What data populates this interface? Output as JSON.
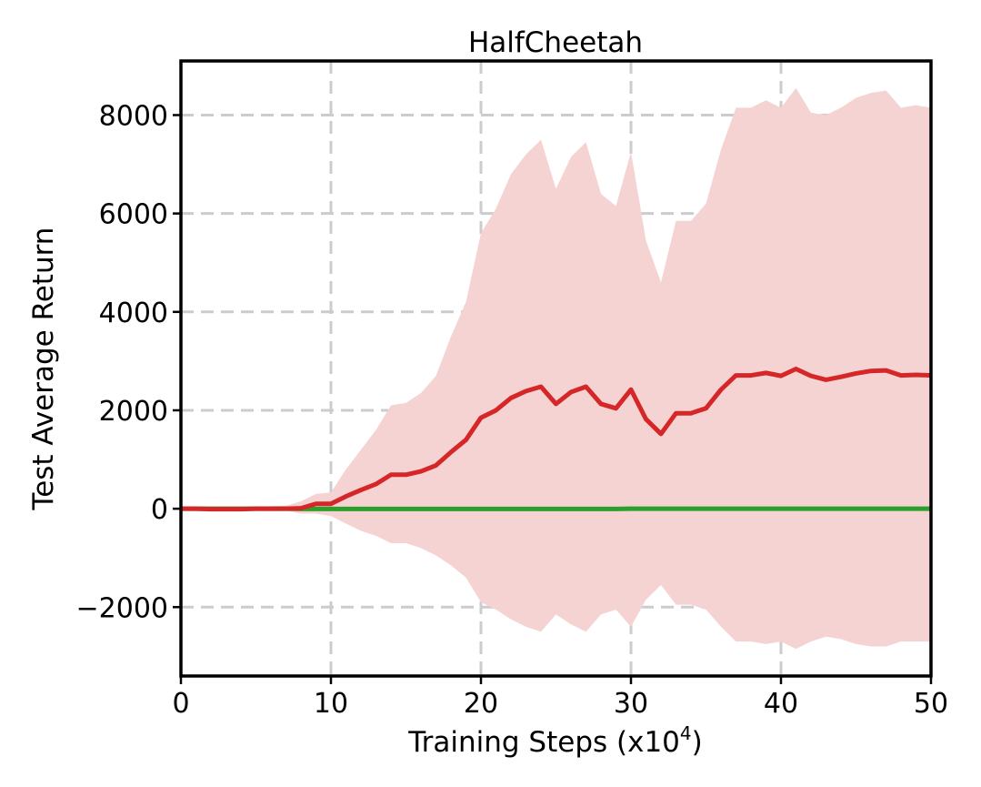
{
  "chart_data": {
    "type": "line",
    "title": "HalfCheetah",
    "xlabel_main": "Training Steps (x10",
    "xlabel_exp": "4",
    "xlabel_close": ")",
    "ylabel": "Test Average Return",
    "xlim": [
      0,
      50
    ],
    "ylim": [
      -3400,
      9100
    ],
    "xticks": [
      0,
      10,
      20,
      30,
      40,
      50
    ],
    "yticks": [
      -2000,
      0,
      2000,
      4000,
      6000,
      8000
    ],
    "ytick_labels": [
      "−2000",
      "0",
      "2000",
      "4000",
      "6000",
      "8000"
    ],
    "grid": true,
    "x": [
      0,
      1,
      2,
      3,
      4,
      5,
      6,
      7,
      8,
      9,
      10,
      11,
      12,
      13,
      14,
      15,
      16,
      17,
      18,
      19,
      20,
      21,
      22,
      23,
      24,
      25,
      26,
      27,
      28,
      29,
      30,
      31,
      32,
      33,
      34,
      35,
      36,
      37,
      38,
      39,
      40,
      41,
      42,
      43,
      44,
      45,
      46,
      47,
      48,
      49,
      50
    ],
    "series": [
      {
        "color": "#d62728",
        "band_color": "#f5d3d3",
        "values": [
          0,
          0,
          -10,
          -10,
          -10,
          0,
          0,
          0,
          10,
          100,
          100,
          250,
          380,
          500,
          690,
          690,
          760,
          880,
          1150,
          1400,
          1850,
          2000,
          2250,
          2390,
          2480,
          2130,
          2370,
          2480,
          2130,
          2040,
          2420,
          1820,
          1520,
          1940,
          1940,
          2040,
          2420,
          2710,
          2710,
          2760,
          2700,
          2840,
          2700,
          2620,
          2680,
          2750,
          2800,
          2810,
          2710,
          2720,
          2710
        ],
        "upper": [
          20,
          20,
          10,
          10,
          10,
          30,
          50,
          60,
          150,
          300,
          330,
          800,
          1200,
          1600,
          2100,
          2150,
          2350,
          2700,
          3500,
          4200,
          5600,
          6100,
          6800,
          7200,
          7500,
          6500,
          7150,
          7450,
          6400,
          6150,
          7250,
          5450,
          4600,
          5850,
          5850,
          6200,
          7300,
          8150,
          8150,
          8300,
          8150,
          8550,
          8050,
          8000,
          8150,
          8350,
          8450,
          8500,
          8150,
          8200,
          8150
        ],
        "lower": [
          -20,
          -20,
          -30,
          -30,
          -30,
          -30,
          -40,
          -40,
          -100,
          -100,
          -150,
          -300,
          -450,
          -550,
          -700,
          -700,
          -800,
          -950,
          -1150,
          -1400,
          -1900,
          -2050,
          -2250,
          -2400,
          -2500,
          -2150,
          -2350,
          -2500,
          -2150,
          -2050,
          -2400,
          -1850,
          -1550,
          -1950,
          -1950,
          -2050,
          -2400,
          -2700,
          -2700,
          -2750,
          -2700,
          -2850,
          -2700,
          -2600,
          -2650,
          -2750,
          -2800,
          -2800,
          -2700,
          -2700,
          -2700
        ]
      },
      {
        "color": "#2ca02c",
        "values": [
          0,
          0,
          0,
          0,
          0,
          0,
          0,
          0,
          -5,
          -5,
          -5,
          -5,
          -5,
          -5,
          -5,
          -5,
          -5,
          -5,
          -5,
          -5,
          -5,
          -5,
          -5,
          -5,
          -5,
          -5,
          -5,
          -5,
          -5,
          -5,
          0,
          0,
          0,
          0,
          0,
          0,
          0,
          0,
          0,
          0,
          0,
          0,
          0,
          0,
          0,
          0,
          0,
          0,
          0,
          0,
          0
        ]
      }
    ]
  }
}
